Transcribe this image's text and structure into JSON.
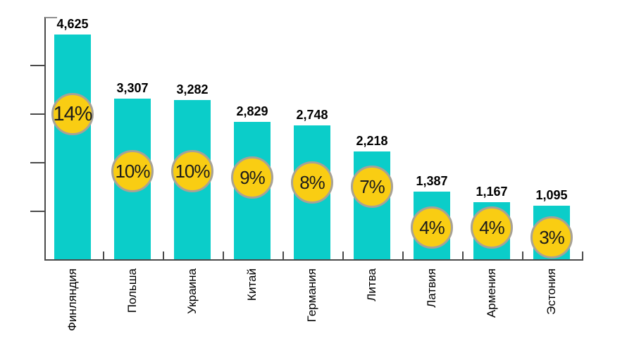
{
  "chart_data": {
    "type": "bar",
    "title": "",
    "xlabel": "",
    "ylabel": "",
    "categories": [
      "Финляндия",
      "Польша",
      "Украина",
      "Китай",
      "Германия",
      "Литва",
      "Латвия",
      "Армения",
      "Эстония"
    ],
    "values": [
      4625,
      3307,
      3282,
      2829,
      2748,
      2218,
      1387,
      1167,
      1095
    ],
    "value_labels": [
      "4,625",
      "3,307",
      "3,282",
      "2,829",
      "2,748",
      "2,218",
      "1,387",
      "1,167",
      "1,095"
    ],
    "percent_labels": [
      "14%",
      "10%",
      "10%",
      "9%",
      "8%",
      "7%",
      "4%",
      "4%",
      "3%"
    ],
    "ylim": [
      0,
      5000
    ],
    "y_tick_interval": 1000,
    "y_tick_labels_shown": false,
    "grid": false,
    "legend": "none",
    "colors": {
      "bar": "#0bcdc9",
      "badge_fill": "#f9cd13",
      "badge_border": "#a8a296",
      "badge_text": "#1c1c1c",
      "axis": "#4a4a4a",
      "label_text": "#000000"
    }
  }
}
